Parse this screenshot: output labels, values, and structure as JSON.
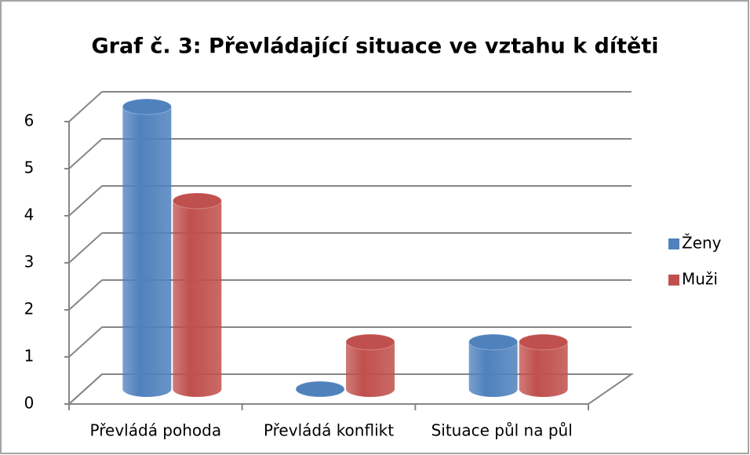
{
  "chart_data": {
    "type": "bar3d",
    "title": "Graf č. 3: Převládající situace ve vztahu k dítěti",
    "categories": [
      "Převládá pohoda",
      "Převládá konflikt",
      "Situace půl na půl"
    ],
    "series": [
      {
        "name": "Ženy",
        "color": "#4f81bd",
        "values": [
          6,
          0,
          1
        ]
      },
      {
        "name": "Muži",
        "color": "#c0504d",
        "values": [
          4,
          1,
          1
        ]
      }
    ],
    "ylim": [
      0,
      6
    ],
    "yticks": [
      0,
      1,
      2,
      3,
      4,
      5,
      6
    ],
    "grid": true,
    "legend": "right"
  }
}
